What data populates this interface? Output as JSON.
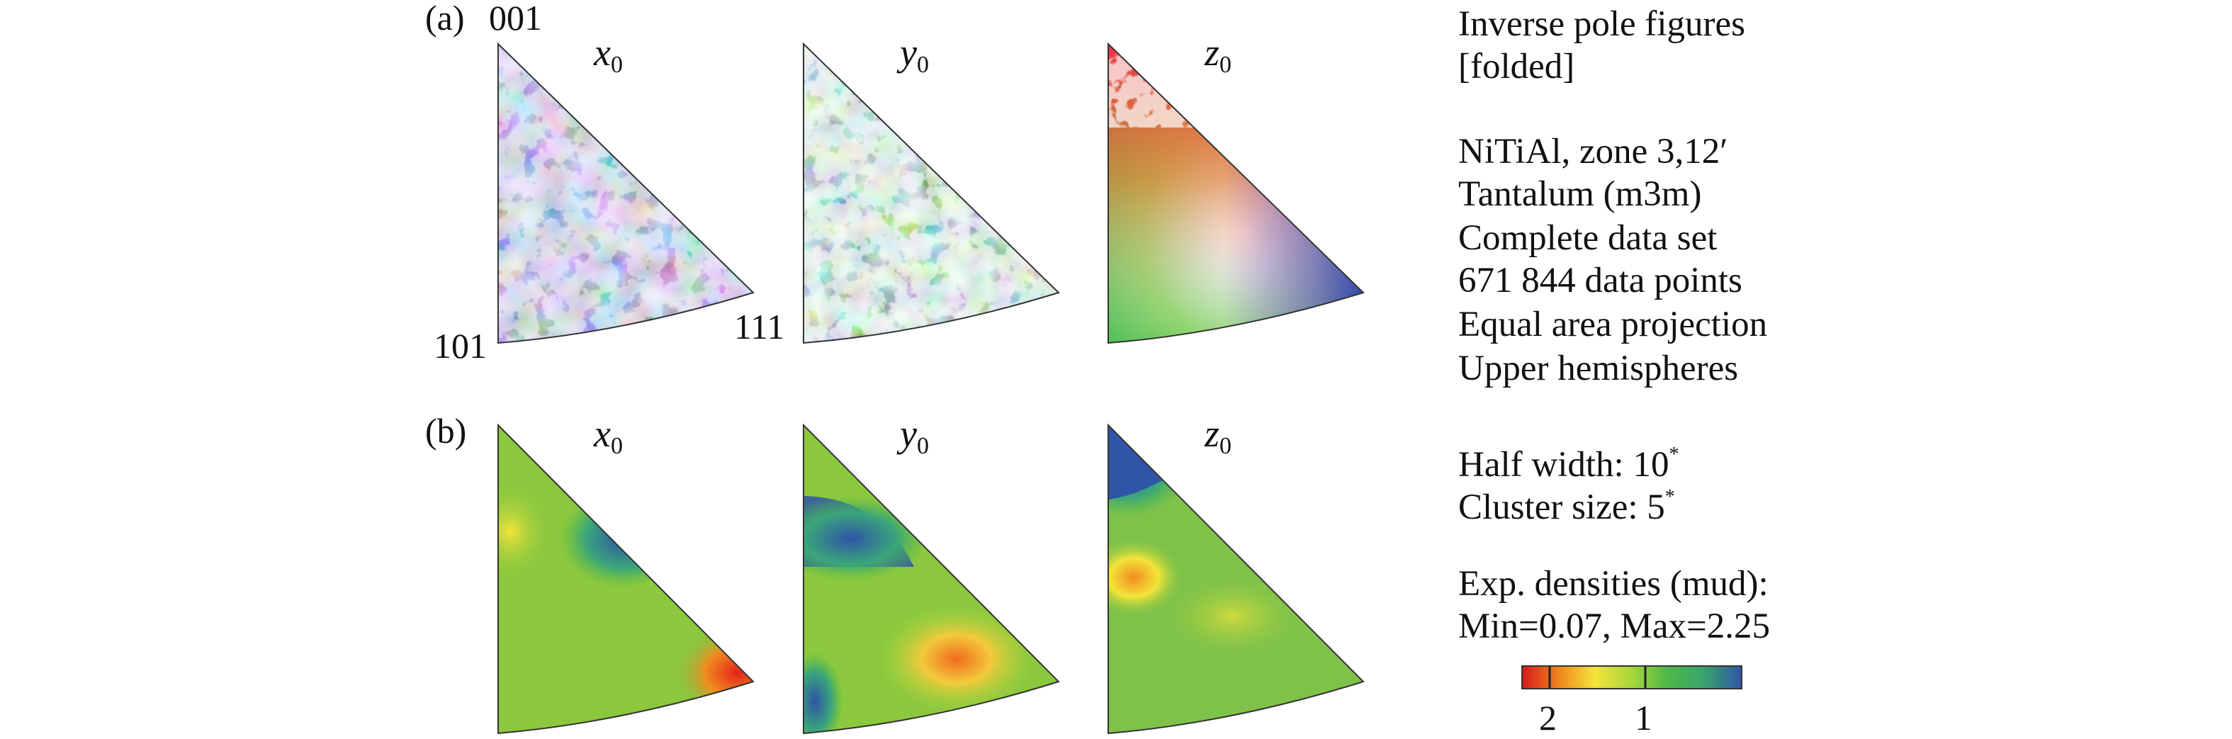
{
  "panel_a": {
    "label": "(a)",
    "corner_001": "001",
    "corner_101": "101",
    "corner_111": "111",
    "figures": [
      {
        "axis": "x",
        "sub": "0",
        "type": "orientation-map"
      },
      {
        "axis": "y",
        "sub": "0",
        "type": "orientation-map"
      },
      {
        "axis": "z",
        "sub": "0",
        "type": "orientation-map"
      }
    ]
  },
  "panel_b": {
    "label": "(b)",
    "figures": [
      {
        "axis": "x",
        "sub": "0",
        "type": "density-map"
      },
      {
        "axis": "y",
        "sub": "0",
        "type": "density-map"
      },
      {
        "axis": "z",
        "sub": "0",
        "type": "density-map"
      }
    ]
  },
  "info": {
    "title_line1": "Inverse pole figures",
    "title_line2": "[folded]",
    "sample": "NiTiAl, zone 3,12′",
    "phase": "Tantalum (m3m)",
    "dataset": "Complete data set",
    "points": "671 844 data points",
    "projection": "Equal area projection",
    "hemisphere": "Upper hemispheres",
    "half_width": "Half width: 10",
    "half_width_sup": "*",
    "cluster_size": "Cluster size: 5",
    "cluster_size_sup": "*",
    "densities_label": "Exp. densities (mud):",
    "densities_range": "Min=0.07, Max=2.25"
  },
  "colorbar": {
    "ticks": [
      "2",
      "1"
    ],
    "tick_values": [
      2,
      1
    ],
    "min": 0.07,
    "max": 2.25,
    "colors": [
      "#d7191c",
      "#f08c1e",
      "#f3e43a",
      "#a8d63c",
      "#4fb848",
      "#3aa66a",
      "#2f55a8"
    ]
  }
}
